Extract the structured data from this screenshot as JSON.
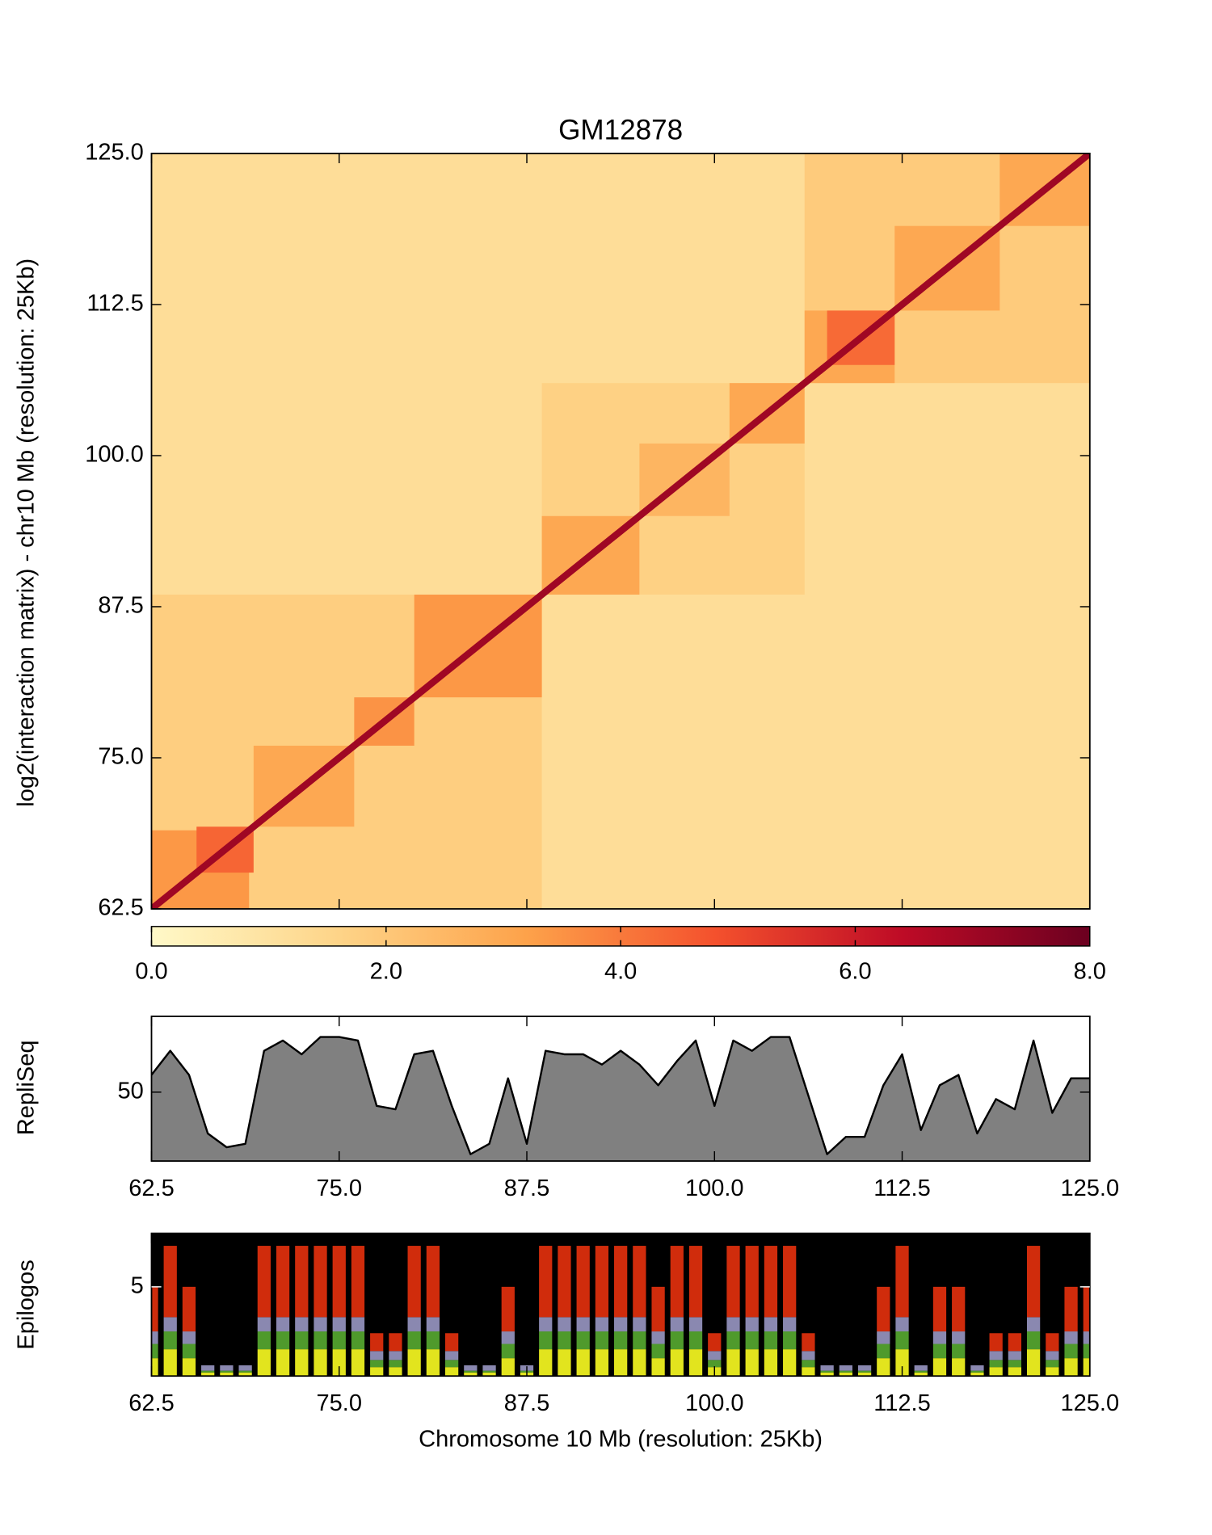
{
  "chart_data": [
    {
      "type": "heatmap",
      "title": "GM12878",
      "ylabel": "log2(interaction matrix) - chr10 Mb (resolution: 25Kb)",
      "xlim": [
        62.5,
        125
      ],
      "ylim": [
        62.5,
        125
      ],
      "xticks": [
        62.5,
        75,
        87.5,
        100,
        112.5,
        125
      ],
      "yticks": [
        62.5,
        {
          "value": 75,
          "label": "75.0"
        },
        87.5,
        {
          "value": 100,
          "label": "100.0"
        },
        112.5,
        {
          "value": 125,
          "label": "125.0"
        }
      ],
      "clim": [
        0,
        8
      ],
      "cticks": [
        {
          "value": 0,
          "label": "0.0"
        },
        {
          "value": 2,
          "label": "2.0"
        },
        {
          "value": 4,
          "label": "4.0"
        },
        {
          "value": 6,
          "label": "6.0"
        },
        {
          "value": 8,
          "label": "8.0"
        }
      ],
      "colors": [
        "#fff9c8",
        "#fed488",
        "#fda24a",
        "#f4512d",
        "#be0b26",
        "#6b0020"
      ],
      "background": 1.2,
      "domains": [
        {
          "start": 62.5,
          "end": 88.5,
          "value": 1.8
        },
        {
          "start": 88.5,
          "end": 106,
          "value": 1.7
        },
        {
          "start": 106,
          "end": 125,
          "value": 1.9
        },
        {
          "start": 62.5,
          "end": 69,
          "value": 3.4
        },
        {
          "start": 65.5,
          "end": 69.3,
          "value": 4.4
        },
        {
          "start": 69.3,
          "end": 76,
          "value": 3
        },
        {
          "start": 76,
          "end": 80,
          "value": 3.5
        },
        {
          "start": 80,
          "end": 88.5,
          "value": 3.4
        },
        {
          "start": 88.5,
          "end": 95,
          "value": 3
        },
        {
          "start": 95,
          "end": 101,
          "value": 2.6
        },
        {
          "start": 101,
          "end": 106,
          "value": 3
        },
        {
          "start": 106,
          "end": 112,
          "value": 3
        },
        {
          "start": 107.5,
          "end": 112,
          "value": 4.3
        },
        {
          "start": 112,
          "end": 119,
          "value": 3
        },
        {
          "start": 119,
          "end": 125,
          "value": 3
        }
      ],
      "diagonal": 7
    },
    {
      "type": "area",
      "ylabel": "RepliSeq",
      "color": "#808080",
      "xlim": [
        62.5,
        125
      ],
      "ylim": [
        30,
        72
      ],
      "yticks": [
        50
      ],
      "xticks": [
        62.5,
        {
          "value": 75,
          "label": "75.0"
        },
        87.5,
        {
          "value": 100,
          "label": "100.0"
        },
        112.5,
        {
          "value": 125,
          "label": "125.0"
        }
      ],
      "x": [
        62.5,
        63.75,
        65,
        66.25,
        67.5,
        68.75,
        70,
        71.25,
        72.5,
        73.75,
        75,
        76.25,
        77.5,
        78.75,
        80,
        81.25,
        82.5,
        83.75,
        85,
        86.25,
        87.5,
        88.75,
        90,
        91.25,
        92.5,
        93.75,
        95,
        96.25,
        97.5,
        98.75,
        100,
        101.25,
        102.5,
        103.75,
        105,
        106.25,
        107.5,
        108.75,
        110,
        111.25,
        112.5,
        113.75,
        115,
        116.25,
        117.5,
        118.75,
        120,
        121.25,
        122.5,
        123.75,
        125
      ],
      "values": [
        55,
        62,
        55,
        38,
        34,
        35,
        62,
        65,
        61,
        66,
        66,
        65,
        46,
        45,
        61,
        62,
        46,
        32,
        35,
        54,
        35,
        62,
        61,
        61,
        58,
        62,
        58,
        52,
        59,
        65,
        46,
        65,
        62,
        66,
        66,
        49,
        32,
        37,
        37,
        52,
        61,
        39,
        52,
        55,
        38,
        48,
        45,
        65,
        44,
        54,
        54
      ]
    },
    {
      "type": "bar",
      "stacked": true,
      "ylabel": "Epilogos",
      "xlabel": "Chromosome 10 Mb (resolution: 25Kb)",
      "background_color": "#000000",
      "xlim": [
        62.5,
        125
      ],
      "ylim": [
        0,
        8
      ],
      "yticks": [
        5
      ],
      "xticks": [
        62.5,
        {
          "value": 75,
          "label": "75.0"
        },
        87.5,
        {
          "value": 100,
          "label": "100.0"
        },
        112.5,
        {
          "value": 125,
          "label": "125.0"
        }
      ],
      "x": [
        62.5,
        63.75,
        65,
        66.25,
        67.5,
        68.75,
        70,
        71.25,
        72.5,
        73.75,
        75,
        76.25,
        77.5,
        78.75,
        80,
        81.25,
        82.5,
        83.75,
        85,
        86.25,
        87.5,
        88.75,
        90,
        91.25,
        92.5,
        93.75,
        95,
        96.25,
        97.5,
        98.75,
        100,
        101.25,
        102.5,
        103.75,
        105,
        106.25,
        107.5,
        108.75,
        110,
        111.25,
        112.5,
        113.75,
        115,
        116.25,
        117.5,
        118.75,
        120,
        121.25,
        122.5,
        123.75,
        125
      ],
      "series": [
        {
          "color": "#e2e41e",
          "values": [
            1,
            1.5,
            1,
            0.2,
            0.2,
            0.2,
            1.5,
            1.5,
            1.5,
            1.5,
            1.5,
            1.5,
            0.5,
            0.5,
            1.5,
            1.5,
            0.5,
            0.2,
            0.2,
            1,
            0.2,
            1.5,
            1.5,
            1.5,
            1.5,
            1.5,
            1.5,
            1,
            1.5,
            1.5,
            0.5,
            1.5,
            1.5,
            1.5,
            1.5,
            0.5,
            0.2,
            0.2,
            0.2,
            1,
            1.5,
            0.2,
            1,
            1,
            0.2,
            0.5,
            0.5,
            1.5,
            0.5,
            1,
            1
          ]
        },
        {
          "color": "#4f9a2c",
          "values": [
            0.8,
            1,
            0.8,
            0.1,
            0.1,
            0.1,
            1,
            1,
            1,
            1,
            1,
            1,
            0.4,
            0.4,
            1,
            1,
            0.4,
            0.1,
            0.1,
            0.8,
            0.1,
            1,
            1,
            1,
            1,
            1,
            1,
            0.8,
            1,
            1,
            0.4,
            1,
            1,
            1,
            1,
            0.4,
            0.1,
            0.1,
            0.1,
            0.8,
            1,
            0.1,
            0.8,
            0.8,
            0.1,
            0.4,
            0.4,
            1,
            0.4,
            0.8,
            0.8
          ]
        },
        {
          "color": "#8a88b0",
          "values": [
            0.7,
            0.8,
            0.7,
            0.3,
            0.3,
            0.3,
            0.8,
            0.8,
            0.8,
            0.8,
            0.8,
            0.8,
            0.5,
            0.5,
            0.8,
            0.8,
            0.5,
            0.3,
            0.3,
            0.7,
            0.3,
            0.8,
            0.8,
            0.8,
            0.8,
            0.8,
            0.8,
            0.7,
            0.8,
            0.8,
            0.5,
            0.8,
            0.8,
            0.8,
            0.8,
            0.5,
            0.3,
            0.3,
            0.3,
            0.7,
            0.8,
            0.3,
            0.7,
            0.7,
            0.3,
            0.5,
            0.5,
            0.8,
            0.5,
            0.7,
            0.7
          ]
        },
        {
          "color": "#d02c0c",
          "values": [
            2.5,
            4,
            2.5,
            0,
            0,
            0,
            4,
            4,
            4,
            4,
            4,
            4,
            1,
            1,
            4,
            4,
            1,
            0,
            0,
            2.5,
            0,
            4,
            4,
            4,
            4,
            4,
            4,
            2.5,
            4,
            4,
            1,
            4,
            4,
            4,
            4,
            1,
            0,
            0,
            0,
            2.5,
            4,
            0,
            2.5,
            2.5,
            0,
            1,
            1,
            4,
            1,
            2.5,
            2.5
          ]
        }
      ]
    }
  ]
}
